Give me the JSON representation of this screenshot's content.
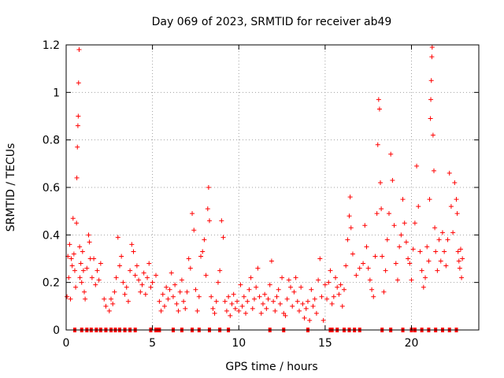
{
  "chart_data": {
    "type": "scatter",
    "title": "Day 069 of 2023, SRMTID for receiver ab49",
    "xlabel": "GPS time / hours",
    "ylabel": "SRMTID / TECUs",
    "xlim": [
      0,
      23.9
    ],
    "ylim": [
      0,
      1.2
    ],
    "grid": true,
    "marker": "+",
    "color": "#ff0000",
    "x_ticks": [
      {
        "value": 0,
        "label": "0"
      },
      {
        "value": 5,
        "label": "5"
      },
      {
        "value": 10,
        "label": "10"
      },
      {
        "value": 15,
        "label": "15"
      },
      {
        "value": 20,
        "label": "20"
      }
    ],
    "y_ticks": [
      {
        "value": 0,
        "label": "0"
      },
      {
        "value": 0.2,
        "label": "0.2"
      },
      {
        "value": 0.4,
        "label": "0.4"
      },
      {
        "value": 0.6,
        "label": "0.6"
      },
      {
        "value": 0.8,
        "label": "0.8"
      },
      {
        "value": 1,
        "label": "1"
      },
      {
        "value": 1.2,
        "label": "1.2"
      }
    ],
    "series": [
      {
        "name": "SRMTID",
        "points": [
          [
            0.05,
            0.14
          ],
          [
            0.1,
            0.31
          ],
          [
            0.15,
            0.22
          ],
          [
            0.2,
            0.36
          ],
          [
            0.25,
            0.13
          ],
          [
            0.3,
            0.3
          ],
          [
            0.35,
            0.27
          ],
          [
            0.4,
            0.47
          ],
          [
            0.45,
            0.32
          ],
          [
            0.5,
            0.25
          ],
          [
            0.55,
            0.18
          ],
          [
            0.6,
            0.45
          ],
          [
            0.62,
            0.64
          ],
          [
            0.65,
            0.77
          ],
          [
            0.68,
            0.86
          ],
          [
            0.7,
            0.9
          ],
          [
            0.72,
            1.04
          ],
          [
            0.75,
            1.18
          ],
          [
            0.78,
            0.35
          ],
          [
            0.8,
            0.22
          ],
          [
            0.85,
            0.28
          ],
          [
            0.9,
            0.2
          ],
          [
            0.95,
            0.33
          ],
          [
            1.0,
            0.25
          ],
          [
            1.05,
            0.16
          ],
          [
            1.1,
            0.13
          ],
          [
            1.2,
            0.26
          ],
          [
            1.3,
            0.4
          ],
          [
            1.35,
            0.37
          ],
          [
            1.4,
            0.3
          ],
          [
            1.5,
            0.22
          ],
          [
            1.6,
            0.3
          ],
          [
            1.7,
            0.19
          ],
          [
            1.8,
            0.25
          ],
          [
            1.9,
            0.21
          ],
          [
            2.0,
            0.28
          ],
          [
            2.2,
            0.13
          ],
          [
            2.3,
            0.1
          ],
          [
            2.5,
            0.08
          ],
          [
            2.6,
            0.13
          ],
          [
            2.7,
            0.11
          ],
          [
            2.8,
            0.16
          ],
          [
            2.9,
            0.22
          ],
          [
            3.0,
            0.39
          ],
          [
            3.1,
            0.27
          ],
          [
            3.2,
            0.31
          ],
          [
            3.3,
            0.2
          ],
          [
            3.4,
            0.15
          ],
          [
            3.5,
            0.18
          ],
          [
            3.6,
            0.12
          ],
          [
            3.7,
            0.25
          ],
          [
            3.8,
            0.36
          ],
          [
            3.9,
            0.33
          ],
          [
            4.0,
            0.23
          ],
          [
            4.1,
            0.27
          ],
          [
            4.2,
            0.21
          ],
          [
            4.3,
            0.16
          ],
          [
            4.4,
            0.19
          ],
          [
            4.5,
            0.24
          ],
          [
            4.6,
            0.15
          ],
          [
            4.7,
            0.22
          ],
          [
            4.8,
            0.28
          ],
          [
            4.9,
            0.18
          ],
          [
            5.0,
            0.2
          ],
          [
            5.2,
            0.23
          ],
          [
            5.4,
            0.12
          ],
          [
            5.5,
            0.08
          ],
          [
            5.6,
            0.15
          ],
          [
            5.7,
            0.1
          ],
          [
            5.8,
            0.18
          ],
          [
            5.9,
            0.13
          ],
          [
            6.0,
            0.17
          ],
          [
            6.1,
            0.24
          ],
          [
            6.2,
            0.14
          ],
          [
            6.3,
            0.19
          ],
          [
            6.4,
            0.11
          ],
          [
            6.5,
            0.08
          ],
          [
            6.6,
            0.16
          ],
          [
            6.7,
            0.21
          ],
          [
            6.8,
            0.12
          ],
          [
            6.9,
            0.09
          ],
          [
            7.0,
            0.16
          ],
          [
            7.1,
            0.3
          ],
          [
            7.2,
            0.26
          ],
          [
            7.3,
            0.49
          ],
          [
            7.4,
            0.42
          ],
          [
            7.5,
            0.17
          ],
          [
            7.6,
            0.08
          ],
          [
            7.7,
            0.14
          ],
          [
            7.8,
            0.31
          ],
          [
            7.9,
            0.33
          ],
          [
            8.0,
            0.38
          ],
          [
            8.1,
            0.23
          ],
          [
            8.2,
            0.51
          ],
          [
            8.25,
            0.6
          ],
          [
            8.3,
            0.46
          ],
          [
            8.4,
            0.14
          ],
          [
            8.5,
            0.09
          ],
          [
            8.6,
            0.07
          ],
          [
            8.7,
            0.12
          ],
          [
            8.8,
            0.2
          ],
          [
            8.9,
            0.25
          ],
          [
            9.0,
            0.46
          ],
          [
            9.1,
            0.39
          ],
          [
            9.2,
            0.12
          ],
          [
            9.3,
            0.08
          ],
          [
            9.4,
            0.14
          ],
          [
            9.5,
            0.06
          ],
          [
            9.6,
            0.11
          ],
          [
            9.7,
            0.15
          ],
          [
            9.8,
            0.09
          ],
          [
            9.9,
            0.12
          ],
          [
            10.0,
            0.08
          ],
          [
            10.1,
            0.19
          ],
          [
            10.2,
            0.1
          ],
          [
            10.3,
            0.14
          ],
          [
            10.4,
            0.07
          ],
          [
            10.5,
            0.12
          ],
          [
            10.6,
            0.17
          ],
          [
            10.7,
            0.22
          ],
          [
            10.8,
            0.09
          ],
          [
            10.9,
            0.13
          ],
          [
            11.0,
            0.18
          ],
          [
            11.1,
            0.26
          ],
          [
            11.2,
            0.14
          ],
          [
            11.3,
            0.07
          ],
          [
            11.4,
            0.11
          ],
          [
            11.5,
            0.15
          ],
          [
            11.6,
            0.09
          ],
          [
            11.7,
            0.13
          ],
          [
            11.8,
            0.19
          ],
          [
            11.9,
            0.29
          ],
          [
            12.0,
            0.12
          ],
          [
            12.1,
            0.08
          ],
          [
            12.2,
            0.14
          ],
          [
            12.3,
            0.17
          ],
          [
            12.4,
            0.11
          ],
          [
            12.5,
            0.22
          ],
          [
            12.6,
            0.07
          ],
          [
            12.7,
            0.06
          ],
          [
            12.8,
            0.13
          ],
          [
            12.9,
            0.21
          ],
          [
            13.0,
            0.18
          ],
          [
            13.1,
            0.1
          ],
          [
            13.2,
            0.16
          ],
          [
            13.3,
            0.22
          ],
          [
            13.4,
            0.12
          ],
          [
            13.5,
            0.08
          ],
          [
            13.6,
            0.18
          ],
          [
            13.7,
            0.11
          ],
          [
            13.8,
            0.05
          ],
          [
            13.9,
            0.09
          ],
          [
            14.0,
            0.12
          ],
          [
            14.1,
            0.04
          ],
          [
            14.2,
            0.17
          ],
          [
            14.3,
            0.1
          ],
          [
            14.4,
            0.13
          ],
          [
            14.5,
            0.07
          ],
          [
            14.6,
            0.21
          ],
          [
            14.7,
            0.3
          ],
          [
            14.8,
            0.14
          ],
          [
            14.9,
            0.04
          ],
          [
            15.0,
            0.19
          ],
          [
            15.1,
            0.13
          ],
          [
            15.2,
            0.2
          ],
          [
            15.3,
            0.25
          ],
          [
            15.4,
            0.11
          ],
          [
            15.5,
            0.14
          ],
          [
            15.6,
            0.22
          ],
          [
            15.7,
            0.18
          ],
          [
            15.8,
            0.15
          ],
          [
            15.9,
            0.19
          ],
          [
            16.0,
            0.1
          ],
          [
            16.1,
            0.17
          ],
          [
            16.2,
            0.27
          ],
          [
            16.3,
            0.38
          ],
          [
            16.4,
            0.48
          ],
          [
            16.45,
            0.56
          ],
          [
            16.5,
            0.43
          ],
          [
            16.6,
            0.32
          ],
          [
            16.8,
            0.23
          ],
          [
            17.0,
            0.26
          ],
          [
            17.2,
            0.28
          ],
          [
            17.3,
            0.44
          ],
          [
            17.4,
            0.35
          ],
          [
            17.5,
            0.26
          ],
          [
            17.6,
            0.21
          ],
          [
            17.7,
            0.17
          ],
          [
            17.8,
            0.14
          ],
          [
            17.9,
            0.31
          ],
          [
            18.0,
            0.49
          ],
          [
            18.05,
            0.78
          ],
          [
            18.1,
            0.97
          ],
          [
            18.15,
            0.93
          ],
          [
            18.2,
            0.62
          ],
          [
            18.25,
            0.51
          ],
          [
            18.3,
            0.31
          ],
          [
            18.4,
            0.16
          ],
          [
            18.5,
            0.25
          ],
          [
            18.6,
            0.38
          ],
          [
            18.7,
            0.49
          ],
          [
            18.8,
            0.74
          ],
          [
            18.9,
            0.63
          ],
          [
            19.0,
            0.44
          ],
          [
            19.1,
            0.28
          ],
          [
            19.2,
            0.21
          ],
          [
            19.3,
            0.35
          ],
          [
            19.4,
            0.4
          ],
          [
            19.5,
            0.55
          ],
          [
            19.6,
            0.45
          ],
          [
            19.7,
            0.37
          ],
          [
            19.8,
            0.3
          ],
          [
            19.9,
            0.28
          ],
          [
            20.0,
            0.21
          ],
          [
            20.1,
            0.34
          ],
          [
            20.2,
            0.45
          ],
          [
            20.3,
            0.69
          ],
          [
            20.4,
            0.52
          ],
          [
            20.5,
            0.33
          ],
          [
            20.6,
            0.25
          ],
          [
            20.7,
            0.18
          ],
          [
            20.8,
            0.22
          ],
          [
            20.9,
            0.35
          ],
          [
            21.0,
            0.29
          ],
          [
            21.05,
            0.55
          ],
          [
            21.1,
            0.89
          ],
          [
            21.12,
            0.97
          ],
          [
            21.15,
            1.05
          ],
          [
            21.18,
            1.15
          ],
          [
            21.2,
            1.19
          ],
          [
            21.25,
            0.82
          ],
          [
            21.3,
            0.67
          ],
          [
            21.35,
            0.43
          ],
          [
            21.4,
            0.33
          ],
          [
            21.5,
            0.25
          ],
          [
            21.6,
            0.38
          ],
          [
            21.7,
            0.29
          ],
          [
            21.8,
            0.41
          ],
          [
            21.9,
            0.33
          ],
          [
            22.0,
            0.27
          ],
          [
            22.1,
            0.38
          ],
          [
            22.2,
            0.66
          ],
          [
            22.3,
            0.52
          ],
          [
            22.4,
            0.41
          ],
          [
            22.5,
            0.62
          ],
          [
            22.6,
            0.55
          ],
          [
            22.65,
            0.49
          ],
          [
            22.7,
            0.33
          ],
          [
            22.75,
            0.29
          ],
          [
            22.8,
            0.26
          ],
          [
            22.85,
            0.34
          ],
          [
            22.9,
            0.22
          ],
          [
            22.95,
            0.3
          ]
        ]
      }
    ],
    "zero_value_x": [
      0.5,
      0.9,
      1.2,
      1.45,
      1.75,
      2.0,
      2.3,
      2.6,
      2.85,
      3.1,
      3.4,
      3.7,
      4.0,
      4.9,
      5.2,
      5.3,
      5.4,
      6.2,
      6.7,
      7.3,
      7.7,
      8.3,
      8.9,
      9.4,
      11.8,
      12.6,
      14.0,
      15.3,
      15.4,
      15.7,
      16.1,
      16.4,
      16.7,
      17.0,
      18.3,
      18.8,
      19.5,
      20.0,
      20.2,
      20.6,
      21.0,
      21.4,
      21.8,
      22.2,
      22.6
    ]
  }
}
